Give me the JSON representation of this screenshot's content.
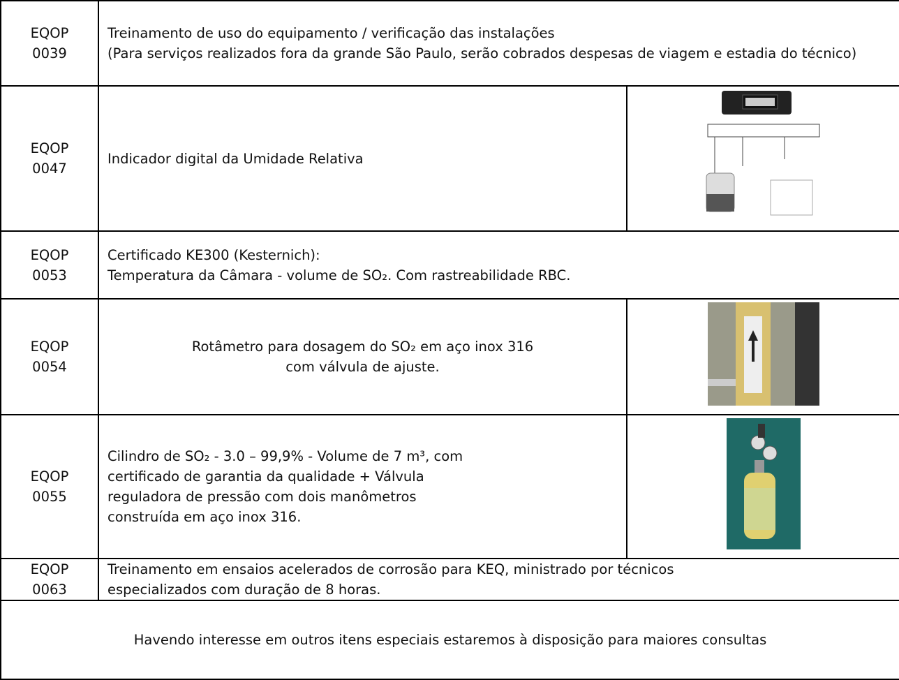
{
  "rows": [
    {
      "code": [
        "EQOP",
        "0039"
      ],
      "lines": [
        "Treinamento de uso do equipamento / verificação das instalações",
        "(Para serviços realizados fora da grande São Paulo, serão cobrados despesas de viagem e estadia do técnico)"
      ]
    },
    {
      "code": [
        "EQOP",
        "0047"
      ],
      "lines": [
        "Indicador digital da Umidade Relativa"
      ]
    },
    {
      "code": [
        "EQOP",
        "0053"
      ],
      "lines": [
        "Certificado KE300 (Kesternich):",
        "Temperatura da Câmara - volume de SO₂. Com rastreabilidade RBC."
      ]
    },
    {
      "code": [
        "EQOP",
        "0054"
      ],
      "lines": [
        "Rotâmetro para dosagem do SO₂ em aço inox 316",
        "com válvula de ajuste."
      ]
    },
    {
      "code": [
        "EQOP",
        "0055"
      ],
      "lines": [
        "Cilindro de SO₂ - 3.0 – 99,9% - Volume de 7 m³, com",
        "certificado de garantia da qualidade + Válvula",
        "reguladora de pressão com dois manômetros",
        "construída em aço inox 316."
      ]
    },
    {
      "code": [
        "EQOP",
        "0063"
      ],
      "lines": [
        "Treinamento em ensaios acelerados de corrosão para KEQ, ministrado por técnicos",
        "especializados com duração de 8 horas."
      ]
    }
  ],
  "footer": "Havendo interesse em outros itens especiais estaremos à disposição para maiores consultas"
}
